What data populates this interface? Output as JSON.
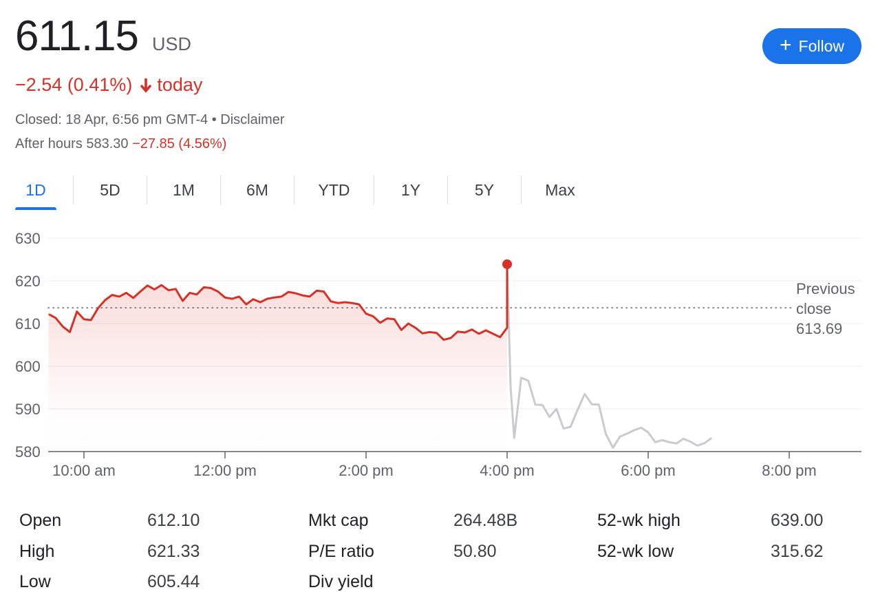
{
  "quote": {
    "price": "611.15",
    "currency": "USD",
    "change_text": "−2.54 (0.41%)",
    "change_suffix": "today",
    "closed_text": "Closed: 18 Apr, 6:56 pm GMT-4 • Disclaimer",
    "after_hours_label": "After hours 583.30",
    "after_hours_change": "−27.85 (4.56%)",
    "follow_label": "Follow"
  },
  "tabs": [
    {
      "label": "1D",
      "active": true
    },
    {
      "label": "5D"
    },
    {
      "label": "1M"
    },
    {
      "label": "6M"
    },
    {
      "label": "YTD"
    },
    {
      "label": "1Y"
    },
    {
      "label": "5Y"
    },
    {
      "label": "Max"
    }
  ],
  "chart_data": {
    "type": "line",
    "ylim": [
      580,
      630
    ],
    "y_ticks": [
      630,
      620,
      610,
      600,
      590,
      580
    ],
    "x_ticks": [
      "10:00 am",
      "12:00 pm",
      "2:00 pm",
      "4:00 pm",
      "6:00 pm",
      "8:00 pm"
    ],
    "x_tick_hours": [
      10,
      12,
      14,
      16,
      18,
      20
    ],
    "previous_close": 613.69,
    "previous_close_label": [
      "Previous",
      "close",
      "613.69"
    ],
    "colors": {
      "regular": "#d93025",
      "after_hours": "#c9cbce",
      "fill": "#d93025"
    },
    "series": [
      {
        "x": [
          9.5,
          9.6,
          9.7,
          9.8,
          9.9,
          10.0,
          10.1,
          10.2,
          10.3,
          10.4,
          10.5,
          10.6,
          10.7,
          10.8,
          10.9,
          11.0,
          11.1,
          11.2,
          11.3,
          11.4,
          11.5,
          11.6,
          11.7,
          11.8,
          11.9,
          12.0,
          12.1,
          12.2,
          12.3,
          12.4,
          12.5,
          12.6,
          12.7,
          12.8,
          12.9,
          13.0,
          13.1,
          13.2,
          13.3,
          13.4,
          13.5,
          13.6,
          13.7,
          13.8,
          13.9,
          14.0,
          14.1,
          14.2,
          14.3,
          14.4,
          14.5,
          14.6,
          14.7,
          14.8,
          14.9,
          15.0,
          15.1,
          15.2,
          15.3,
          15.4,
          15.5,
          15.6,
          15.7,
          15.8,
          15.9,
          16.0
        ],
        "values": [
          612.2,
          611.3,
          609.3,
          608.0,
          612.8,
          611.0,
          610.8,
          613.6,
          615.5,
          616.7,
          616.3,
          617.2,
          616.0,
          617.5,
          618.9,
          618.0,
          619.0,
          617.8,
          618.1,
          615.3,
          617.2,
          616.8,
          618.5,
          618.3,
          617.5,
          616.1,
          615.8,
          616.3,
          614.5,
          615.7,
          615.0,
          615.8,
          616.1,
          616.3,
          617.4,
          617.1,
          616.6,
          616.3,
          617.7,
          617.5,
          615.2,
          614.8,
          615.0,
          614.8,
          614.5,
          612.3,
          611.7,
          610.2,
          611.2,
          611.0,
          608.5,
          610.0,
          609.0,
          607.7,
          608.0,
          607.8,
          606.2,
          606.6,
          608.1,
          607.9,
          608.6,
          607.6,
          608.4,
          607.6,
          606.8,
          609.0
        ]
      },
      {
        "x": [
          16.0,
          16.05,
          16.1,
          16.2,
          16.3,
          16.4,
          16.5,
          16.6,
          16.7,
          16.8,
          16.9,
          17.0,
          17.1,
          17.2,
          17.3,
          17.4,
          17.5,
          17.6,
          17.7,
          17.8,
          17.9,
          18.0,
          18.1,
          18.2,
          18.3,
          18.4,
          18.5,
          18.6,
          18.7,
          18.8,
          18.9
        ],
        "values": [
          623.9,
          595.0,
          583.2,
          597.3,
          596.6,
          591.0,
          590.9,
          588.1,
          590.0,
          585.4,
          585.8,
          589.8,
          593.5,
          591.1,
          591.0,
          584.1,
          580.9,
          583.5,
          584.2,
          585.0,
          585.6,
          584.5,
          582.2,
          582.7,
          582.2,
          581.9,
          583.0,
          582.3,
          581.4,
          582.0,
          583.2
        ]
      }
    ],
    "highlight_point": {
      "x": 16.0,
      "y": 623.9
    }
  },
  "stats": {
    "rows": [
      [
        {
          "label": "Open",
          "value": "612.10"
        },
        {
          "label": "Mkt cap",
          "value": "264.48B"
        },
        {
          "label": "52-wk high",
          "value": "639.00"
        }
      ],
      [
        {
          "label": "High",
          "value": "621.33"
        },
        {
          "label": "P/E ratio",
          "value": "50.80"
        },
        {
          "label": "52-wk low",
          "value": "315.62"
        }
      ],
      [
        {
          "label": "Low",
          "value": "605.44"
        },
        {
          "label": "Div yield",
          "value": ""
        }
      ]
    ]
  }
}
